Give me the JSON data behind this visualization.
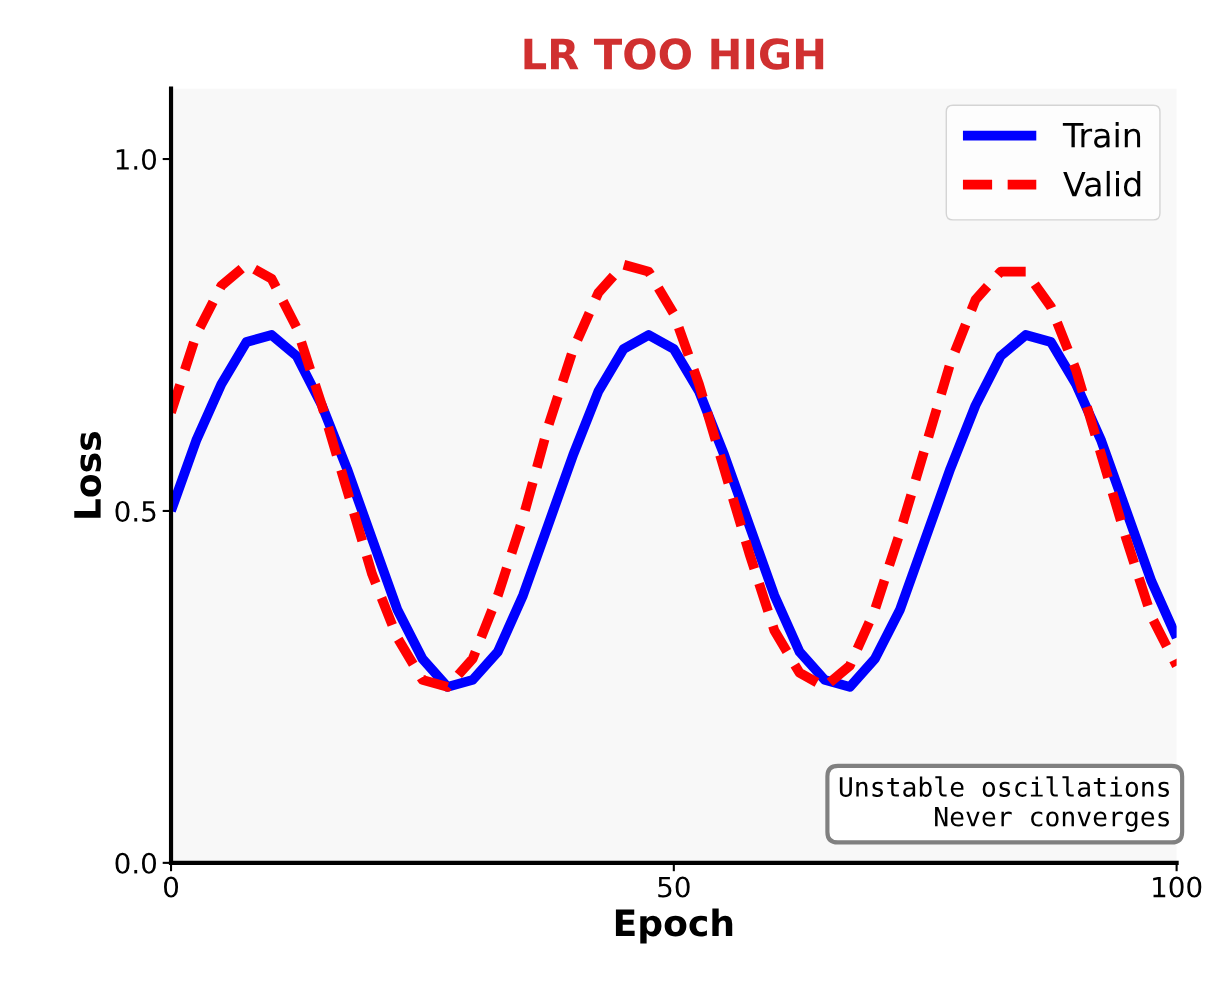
{
  "chart_data": {
    "type": "line",
    "title": "LR TOO HIGH",
    "xlabel": "Epoch",
    "ylabel": "Loss",
    "x": [
      0,
      2.5,
      5,
      7.5,
      10,
      12.5,
      15,
      17.5,
      20,
      22.5,
      25,
      27.5,
      30,
      32.5,
      35,
      37.5,
      40,
      42.5,
      45,
      47.5,
      50,
      52.5,
      55,
      57.5,
      60,
      62.5,
      65,
      67.5,
      70,
      72.5,
      75,
      77.5,
      80,
      82.5,
      85,
      87.5,
      90,
      92.5,
      95,
      97.5,
      100
    ],
    "series": [
      {
        "name": "Train",
        "color": "#0000ff",
        "line_style": "solid",
        "values": [
          0.5,
          0.6,
          0.68,
          0.74,
          0.75,
          0.72,
          0.65,
          0.56,
          0.46,
          0.36,
          0.29,
          0.25,
          0.26,
          0.3,
          0.38,
          0.48,
          0.58,
          0.67,
          0.73,
          0.75,
          0.73,
          0.67,
          0.58,
          0.48,
          0.38,
          0.3,
          0.26,
          0.25,
          0.29,
          0.36,
          0.46,
          0.56,
          0.65,
          0.72,
          0.75,
          0.74,
          0.68,
          0.6,
          0.5,
          0.4,
          0.32
        ]
      },
      {
        "name": "Valid",
        "color": "#ff0000",
        "line_style": "dashed",
        "values": [
          0.64,
          0.75,
          0.82,
          0.85,
          0.83,
          0.76,
          0.65,
          0.53,
          0.41,
          0.32,
          0.26,
          0.25,
          0.29,
          0.38,
          0.49,
          0.62,
          0.73,
          0.81,
          0.85,
          0.84,
          0.78,
          0.68,
          0.56,
          0.44,
          0.33,
          0.27,
          0.25,
          0.28,
          0.36,
          0.47,
          0.59,
          0.71,
          0.8,
          0.84,
          0.84,
          0.79,
          0.7,
          0.58,
          0.46,
          0.35,
          0.28
        ]
      }
    ],
    "xlim": [
      0,
      100
    ],
    "ylim": [
      0,
      1.1
    ],
    "xticks": [
      0,
      50,
      100
    ],
    "yticks": [
      {
        "value": 0,
        "label": "0.0"
      },
      {
        "value": 0.5,
        "label": "0.5"
      },
      {
        "value": 1.0,
        "label": "1.0"
      }
    ],
    "annotations": [
      "Unstable oscillations\nNever converges"
    ],
    "legend": "top right",
    "grid": false,
    "marker": "none"
  }
}
